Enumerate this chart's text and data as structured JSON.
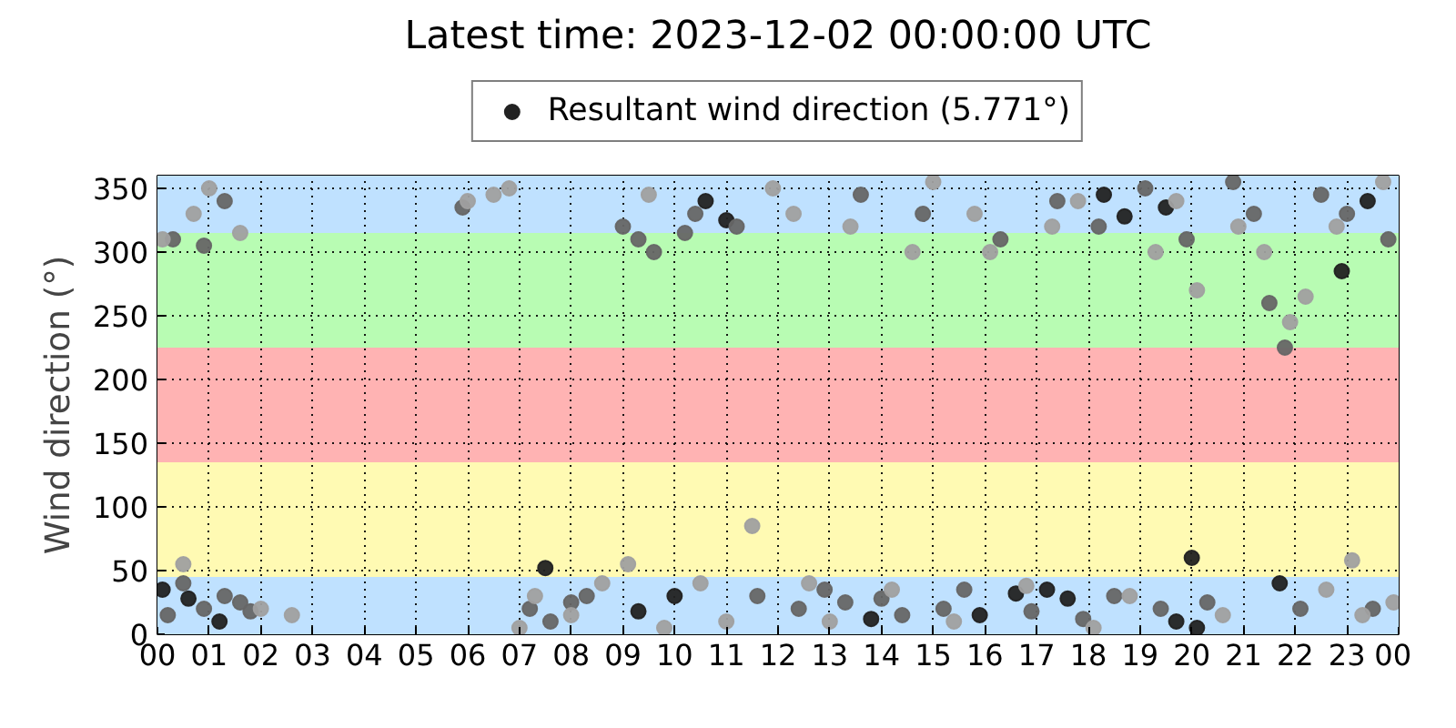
{
  "chart_data": {
    "type": "scatter",
    "title": "Latest time: 2023-12-02 00:00:00 UTC",
    "ylabel": "Wind direction (°)",
    "xlim": [
      0,
      24
    ],
    "ylim": [
      0,
      360
    ],
    "xticks": [
      {
        "value": 0,
        "label": "00"
      },
      {
        "value": 1,
        "label": "01"
      },
      {
        "value": 2,
        "label": "02"
      },
      {
        "value": 3,
        "label": "03"
      },
      {
        "value": 4,
        "label": "04"
      },
      {
        "value": 5,
        "label": "05"
      },
      {
        "value": 6,
        "label": "06"
      },
      {
        "value": 7,
        "label": "07"
      },
      {
        "value": 8,
        "label": "08"
      },
      {
        "value": 9,
        "label": "09"
      },
      {
        "value": 10,
        "label": "10"
      },
      {
        "value": 11,
        "label": "11"
      },
      {
        "value": 12,
        "label": "12"
      },
      {
        "value": 13,
        "label": "13"
      },
      {
        "value": 14,
        "label": "14"
      },
      {
        "value": 15,
        "label": "15"
      },
      {
        "value": 16,
        "label": "16"
      },
      {
        "value": 17,
        "label": "17"
      },
      {
        "value": 18,
        "label": "18"
      },
      {
        "value": 19,
        "label": "19"
      },
      {
        "value": 20,
        "label": "20"
      },
      {
        "value": 21,
        "label": "21"
      },
      {
        "value": 22,
        "label": "22"
      },
      {
        "value": 23,
        "label": "23"
      },
      {
        "value": 24,
        "label": "00"
      }
    ],
    "yticks": [
      0,
      50,
      100,
      150,
      200,
      250,
      300,
      350
    ],
    "grid": true,
    "legend": "top",
    "marker": "circle",
    "bands": [
      {
        "axis": "y",
        "from": 0,
        "to": 45,
        "color": "#bfe1ff"
      },
      {
        "axis": "y",
        "from": 45,
        "to": 135,
        "color": "#fffab3"
      },
      {
        "axis": "y",
        "from": 135,
        "to": 225,
        "color": "#ffb3b3"
      },
      {
        "axis": "y",
        "from": 225,
        "to": 315,
        "color": "#b8fcb3"
      },
      {
        "axis": "y",
        "from": 315,
        "to": 360,
        "color": "#bfe1ff"
      }
    ],
    "series": [
      {
        "name": "Resultant wind direction (5.771°)",
        "color": "#222222",
        "x": [
          0.1,
          0.6,
          1.2,
          7.5,
          9.3,
          10.6,
          11.0,
          13.8,
          15.9,
          16.6,
          17.2,
          17.6,
          18.3,
          18.7,
          19.5,
          19.7,
          20.0,
          20.1,
          21.7,
          22.9,
          23.4,
          10.0
        ],
        "values": [
          35,
          28,
          10,
          52,
          18,
          340,
          325,
          12,
          15,
          32,
          35,
          28,
          345,
          328,
          335,
          10,
          60,
          5,
          40,
          285,
          340,
          30
        ]
      },
      {
        "color": "#666666",
        "x": [
          0.2,
          0.5,
          0.9,
          1.3,
          1.6,
          1.8,
          0.3,
          0.9,
          1.3,
          7.2,
          7.6,
          8.0,
          8.3,
          9.0,
          9.3,
          9.6,
          10.2,
          10.4,
          11.2,
          11.6,
          12.4,
          12.9,
          13.3,
          13.6,
          14.0,
          14.4,
          14.8,
          15.2,
          15.6,
          16.3,
          16.9,
          17.4,
          17.9,
          18.2,
          18.5,
          19.1,
          19.4,
          19.9,
          20.3,
          20.8,
          21.2,
          21.5,
          21.8,
          22.1,
          22.5,
          23.0,
          23.5,
          23.8,
          5.9
        ],
        "values": [
          15,
          40,
          20,
          30,
          25,
          18,
          310,
          305,
          340,
          20,
          10,
          25,
          30,
          320,
          310,
          300,
          315,
          330,
          320,
          30,
          20,
          35,
          25,
          345,
          28,
          15,
          330,
          20,
          35,
          310,
          18,
          340,
          12,
          320,
          30,
          350,
          20,
          310,
          25,
          355,
          330,
          260,
          225,
          20,
          345,
          330,
          20,
          310,
          335
        ]
      },
      {
        "color": "#a0a0a0",
        "x": [
          0.1,
          0.7,
          1.0,
          1.6,
          2.0,
          2.6,
          6.0,
          6.5,
          6.8,
          7.0,
          7.3,
          8.0,
          8.6,
          9.1,
          9.5,
          9.8,
          10.5,
          11.0,
          11.5,
          11.9,
          12.3,
          12.6,
          13.0,
          13.4,
          14.2,
          14.6,
          15.0,
          15.4,
          15.8,
          16.1,
          16.8,
          17.3,
          17.8,
          18.1,
          18.8,
          19.3,
          19.7,
          20.1,
          20.6,
          20.9,
          21.4,
          21.9,
          22.2,
          22.6,
          22.8,
          23.1,
          23.3,
          23.7,
          23.9,
          0.5
        ],
        "values": [
          310,
          330,
          350,
          315,
          20,
          15,
          340,
          345,
          350,
          5,
          30,
          15,
          40,
          55,
          345,
          5,
          40,
          10,
          85,
          350,
          330,
          40,
          10,
          320,
          35,
          300,
          355,
          10,
          330,
          300,
          38,
          320,
          340,
          5,
          30,
          300,
          340,
          270,
          15,
          320,
          300,
          245,
          265,
          35,
          320,
          58,
          15,
          355,
          25,
          55
        ]
      }
    ]
  }
}
